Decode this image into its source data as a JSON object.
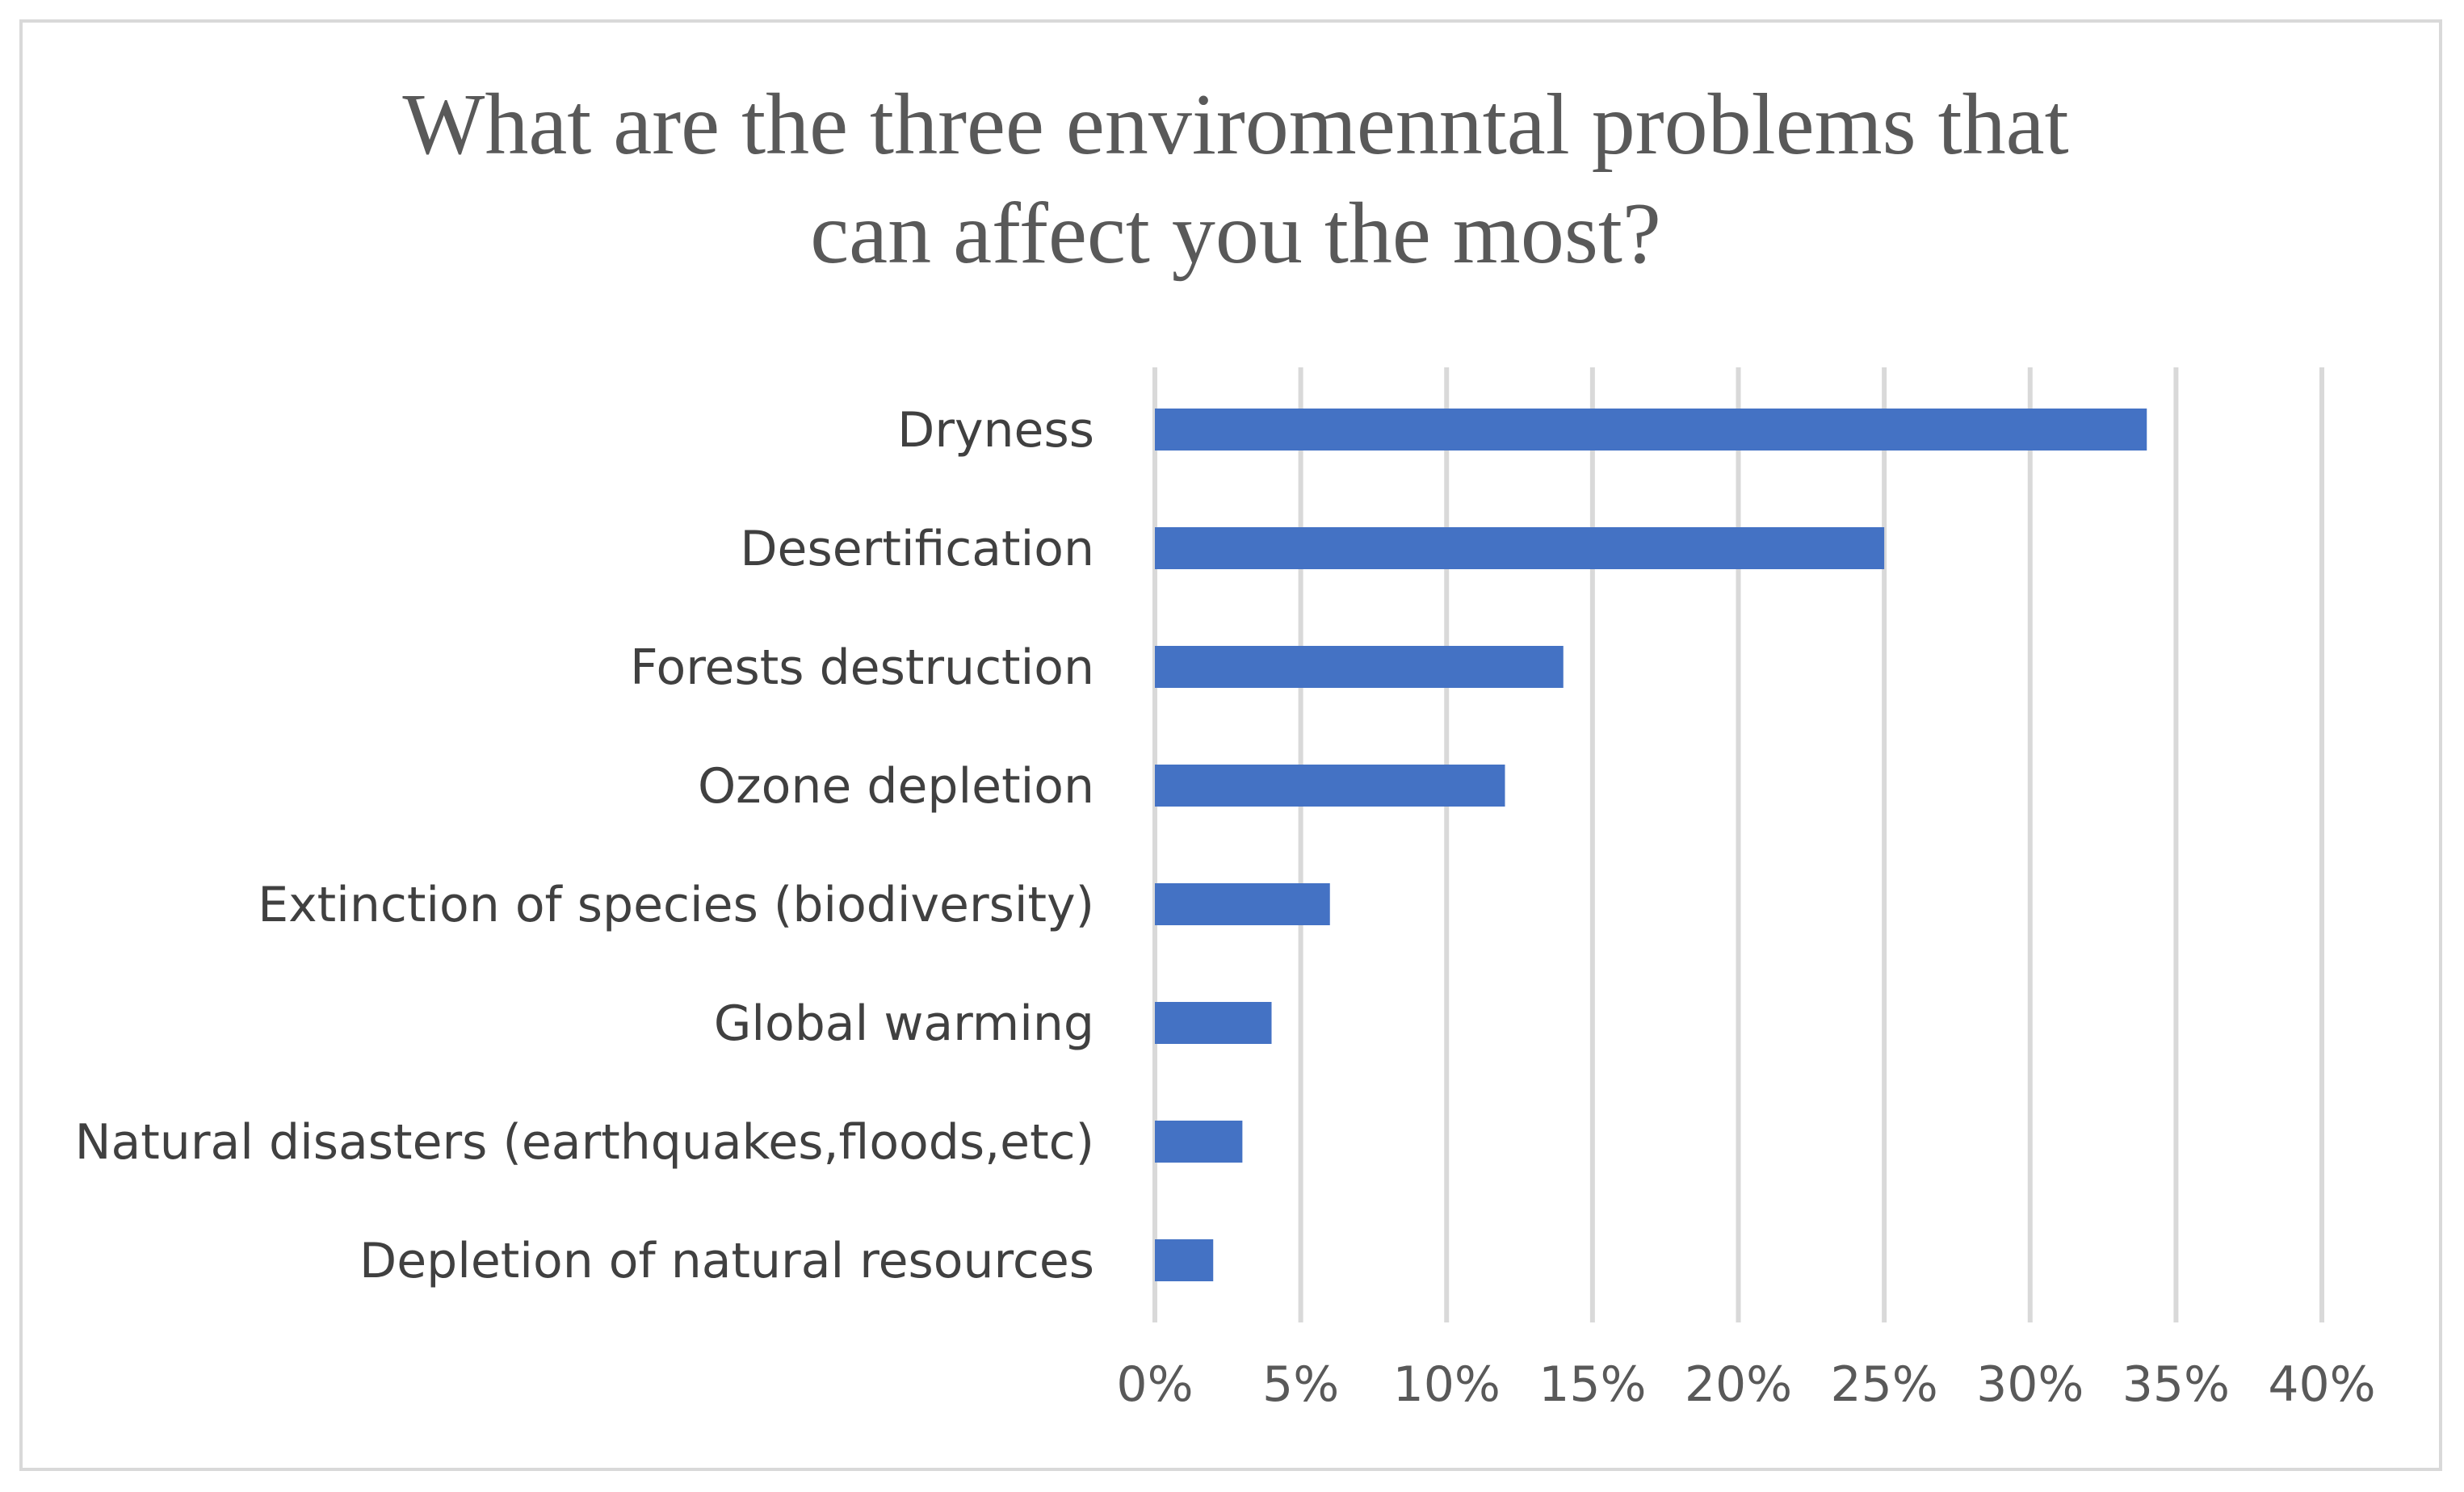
{
  "chart_data": {
    "type": "bar",
    "orientation": "horizontal",
    "title_lines": [
      "What are the three enviromenntal  problems that",
      "can affect you the most?"
    ],
    "categories": [
      "Dryness",
      "Desertification",
      "Forests destruction",
      "Ozone depletion",
      "Extinction of species (biodiversity)",
      "Global warming",
      "Natural disasters (earthquakes,floods,etc)",
      "Depletion of natural resources"
    ],
    "values": [
      34,
      25,
      14,
      12,
      6,
      4,
      3,
      2
    ],
    "value_unit": "%",
    "xlim": [
      0,
      40
    ],
    "xticks": [
      0,
      5,
      10,
      15,
      20,
      25,
      30,
      35,
      40
    ],
    "xtick_labels": [
      "0%",
      "5%",
      "10%",
      "15%",
      "20%",
      "25%",
      "30%",
      "35%",
      "40%"
    ],
    "grid": true,
    "legend": "none",
    "bar_color": "#4472c4",
    "grid_color": "#d9d9d9",
    "xlabel": "",
    "ylabel": ""
  }
}
